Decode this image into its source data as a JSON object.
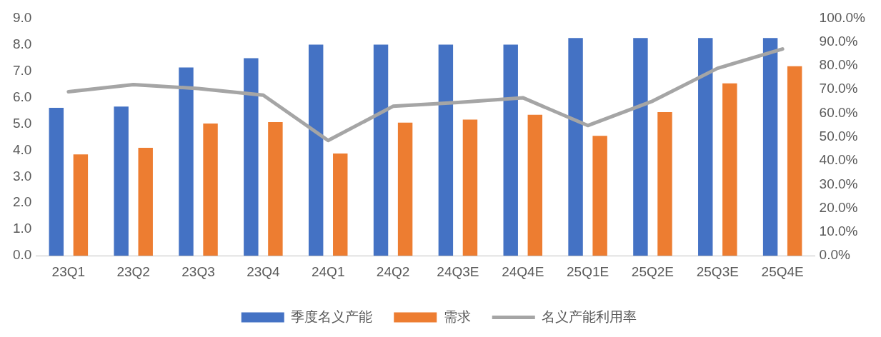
{
  "chart_data": {
    "type": "bar",
    "categories": [
      "23Q1",
      "23Q2",
      "23Q3",
      "23Q4",
      "24Q1",
      "24Q2",
      "24Q3E",
      "24Q4E",
      "25Q1E",
      "25Q2E",
      "25Q3E",
      "25Q4E"
    ],
    "series": [
      {
        "name": "季度名义产能",
        "color": "#4472c4",
        "values": [
          5.6,
          5.65,
          7.13,
          7.48,
          8.0,
          8.0,
          8.0,
          8.0,
          8.25,
          8.25,
          8.25,
          8.25
        ]
      },
      {
        "name": "需求",
        "color": "#ed7d31",
        "values": [
          3.84,
          4.09,
          5.01,
          5.06,
          3.87,
          5.04,
          5.16,
          5.34,
          4.54,
          5.44,
          6.53,
          7.18
        ]
      },
      {
        "name": "名义产能利用率",
        "color": "#a5a5a5",
        "type": "line",
        "axis": "y2",
        "marker": "none",
        "values": [
          69.0,
          72.0,
          70.4,
          67.6,
          48.5,
          62.9,
          64.5,
          66.5,
          54.8,
          65.1,
          78.9,
          87.0
        ]
      }
    ],
    "ylim": [
      0,
      9
    ],
    "yticks": [
      {
        "value": 0,
        "label": "0.0"
      },
      {
        "value": 1,
        "label": "1.0"
      },
      {
        "value": 2,
        "label": "2.0"
      },
      {
        "value": 3,
        "label": "3.0"
      },
      {
        "value": 4,
        "label": "4.0"
      },
      {
        "value": 5,
        "label": "5.0"
      },
      {
        "value": 6,
        "label": "6.0"
      },
      {
        "value": 7,
        "label": "7.0"
      },
      {
        "value": 8,
        "label": "8.0"
      },
      {
        "value": 9,
        "label": "9.0"
      }
    ],
    "y2lim": [
      0,
      100
    ],
    "y2ticks": [
      {
        "value": 0,
        "label": "0.0%"
      },
      {
        "value": 10,
        "label": "10.0%"
      },
      {
        "value": 20,
        "label": "20.0%"
      },
      {
        "value": 30,
        "label": "30.0%"
      },
      {
        "value": 40,
        "label": "40.0%"
      },
      {
        "value": 50,
        "label": "50.0%"
      },
      {
        "value": 60,
        "label": "60.0%"
      },
      {
        "value": 70,
        "label": "70.0%"
      },
      {
        "value": 80,
        "label": "80.0%"
      },
      {
        "value": 90,
        "label": "90.0%"
      },
      {
        "value": 100,
        "label": "100.0%"
      }
    ],
    "grid": false,
    "legend": "bottom"
  }
}
